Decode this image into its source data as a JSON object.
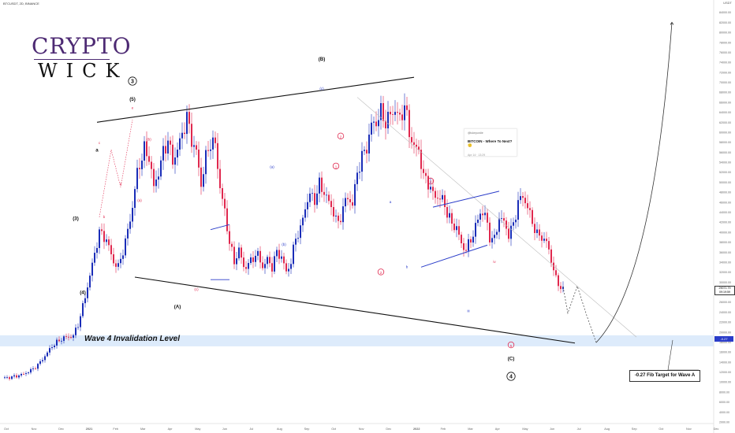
{
  "header": {
    "symbol": "BTCUSDT, 2D, BINANCE",
    "currency": "USDT"
  },
  "logo": {
    "line1": "CRYPTO",
    "line2": "WICK"
  },
  "tweet": {
    "handle": "@lukepurdie",
    "title": "BITCOIN - Where To Next? 🙂",
    "date": "Apr 14 · 13:29"
  },
  "callout_text": "-0.27 Fib Target for Wave A",
  "zone_label": "Wave 4 Invalidation Level",
  "price_tags": {
    "current": "29071.79",
    "countdown": "09:19:59",
    "zone": "-0.27"
  },
  "colors": {
    "up": "#1a2db8",
    "down": "#e0284e",
    "zone": "#cfe3fa",
    "waveRed": "#e0284e",
    "waveBlue": "#2a3cc9",
    "logoPurple": "#4d2a73"
  },
  "chart_data": {
    "type": "candlestick",
    "price_axis": [
      "84000.00",
      "82000.00",
      "80000.00",
      "78000.00",
      "76000.00",
      "74000.00",
      "72000.00",
      "70000.00",
      "68000.00",
      "66000.00",
      "64000.00",
      "62000.00",
      "60000.00",
      "58000.00",
      "56000.00",
      "54000.00",
      "52000.00",
      "50000.00",
      "48000.00",
      "46000.00",
      "44000.00",
      "42000.00",
      "40000.00",
      "38000.00",
      "36000.00",
      "34000.00",
      "32000.00",
      "30000.00",
      "28000.00",
      "26000.00",
      "24000.00",
      "22000.00",
      "20000.00",
      "18000.00",
      "16000.00",
      "14000.00",
      "12000.00",
      "10000.00",
      "8000.00",
      "6000.00",
      "4000.00",
      "2000.00"
    ],
    "x_ticks": [
      "Oct",
      "Nov",
      "Dec",
      "2021",
      "Feb",
      "Mar",
      "Apr",
      "May",
      "Jun",
      "Jul",
      "Aug",
      "Sep",
      "Oct",
      "Nov",
      "Dec",
      "2022",
      "Feb",
      "Mar",
      "Apr",
      "May",
      "Jun",
      "Jul",
      "Aug",
      "Sep",
      "Oct",
      "Nov",
      "Dec"
    ],
    "trend_points": [
      [
        0,
        10800
      ],
      [
        3,
        10900
      ],
      [
        6,
        11200
      ],
      [
        9,
        11600
      ],
      [
        12,
        12300
      ],
      [
        15,
        13400
      ],
      [
        18,
        15200
      ],
      [
        21,
        17200
      ],
      [
        24,
        18300
      ],
      [
        26,
        18900
      ],
      [
        28,
        19000
      ],
      [
        30,
        19300
      ],
      [
        32,
        21500
      ],
      [
        35,
        27000
      ],
      [
        38,
        33500
      ],
      [
        41,
        40000
      ],
      [
        44,
        38500
      ],
      [
        47,
        34000
      ],
      [
        49,
        33000
      ],
      [
        52,
        38000
      ],
      [
        55,
        45000
      ],
      [
        57,
        52000
      ],
      [
        60,
        56500
      ],
      [
        62,
        55000
      ],
      [
        64,
        49000
      ],
      [
        66,
        52000
      ],
      [
        68,
        56000
      ],
      [
        70,
        58500
      ],
      [
        72,
        54000
      ],
      [
        75,
        58000
      ],
      [
        78,
        63000
      ],
      [
        80,
        58500
      ],
      [
        82,
        56000
      ],
      [
        84,
        49500
      ],
      [
        86,
        55000
      ],
      [
        88,
        58000
      ],
      [
        90,
        57500
      ],
      [
        92,
        49000
      ],
      [
        94,
        44000
      ],
      [
        96,
        38000
      ],
      [
        98,
        34000
      ],
      [
        100,
        36500
      ],
      [
        102,
        33000
      ],
      [
        104,
        33500
      ],
      [
        106,
        35000
      ],
      [
        108,
        35500
      ],
      [
        110,
        33000
      ],
      [
        112,
        34500
      ],
      [
        114,
        33000
      ],
      [
        116,
        36000
      ],
      [
        118,
        35000
      ],
      [
        120,
        32000
      ],
      [
        122,
        34000
      ],
      [
        124,
        39000
      ],
      [
        126,
        40500
      ],
      [
        128,
        45000
      ],
      [
        130,
        47500
      ],
      [
        132,
        46500
      ],
      [
        134,
        49500
      ],
      [
        136,
        48000
      ],
      [
        138,
        46000
      ],
      [
        140,
        44000
      ],
      [
        142,
        41500
      ],
      [
        144,
        45000
      ],
      [
        146,
        47000
      ],
      [
        148,
        45500
      ],
      [
        150,
        52000
      ],
      [
        152,
        55000
      ],
      [
        154,
        57000
      ],
      [
        156,
        61500
      ],
      [
        158,
        62000
      ],
      [
        160,
        64000
      ],
      [
        162,
        62000
      ],
      [
        164,
        63500
      ],
      [
        166,
        64500
      ],
      [
        168,
        62500
      ],
      [
        170,
        65500
      ],
      [
        172,
        60000
      ],
      [
        174,
        57000
      ],
      [
        176,
        56500
      ],
      [
        178,
        51000
      ],
      [
        180,
        50000
      ],
      [
        182,
        47500
      ],
      [
        184,
        47000
      ],
      [
        186,
        46500
      ],
      [
        188,
        44000
      ],
      [
        190,
        41500
      ],
      [
        192,
        41000
      ],
      [
        194,
        37500
      ],
      [
        196,
        36500
      ],
      [
        198,
        38500
      ],
      [
        200,
        41000
      ],
      [
        202,
        44000
      ],
      [
        204,
        43500
      ],
      [
        206,
        39000
      ],
      [
        208,
        38500
      ],
      [
        210,
        43000
      ],
      [
        212,
        42000
      ],
      [
        214,
        39500
      ],
      [
        216,
        41500
      ],
      [
        218,
        46000
      ],
      [
        220,
        47200
      ],
      [
        222,
        45000
      ],
      [
        224,
        42000
      ],
      [
        226,
        39500
      ],
      [
        228,
        39000
      ],
      [
        230,
        38000
      ],
      [
        232,
        34500
      ],
      [
        234,
        30500
      ],
      [
        236,
        29000
      ],
      [
        237,
        29072
      ]
    ],
    "y_range": [
      2000,
      86000
    ],
    "zone_level": 18400,
    "projection": [
      [
        237,
        29072
      ],
      [
        239,
        23800
      ],
      [
        243,
        29200
      ],
      [
        247,
        23300
      ],
      [
        251,
        17900
      ]
    ],
    "big_arc": [
      [
        251,
        17900
      ],
      [
        262,
        27000
      ],
      [
        270,
        40000
      ],
      [
        278,
        60000
      ],
      [
        283,
        82000
      ]
    ],
    "upper_line": [
      [
        40,
        62000
      ],
      [
        174,
        71000
      ]
    ],
    "lower_line": [
      [
        56,
        31000
      ],
      [
        242,
        17800
      ]
    ],
    "waves": [
      {
        "label": "3",
        "circle": true,
        "i": 55,
        "p": 70000,
        "color": "#111"
      },
      {
        "label": "(5)",
        "i": 55,
        "p": 66500,
        "color": "#111"
      },
      {
        "label": "(B)",
        "i": 135,
        "p": 74500,
        "color": "#111"
      },
      {
        "label": "(3)",
        "i": 31,
        "p": 42600,
        "color": "#111"
      },
      {
        "label": "(4)",
        "i": 34,
        "p": 27800,
        "color": "#111"
      },
      {
        "label": "(A)",
        "i": 74,
        "p": 25000,
        "color": "#111"
      },
      {
        "label": "(C)",
        "i": 215,
        "p": 14600,
        "color": "#111"
      },
      {
        "label": "4",
        "circle": true,
        "i": 215,
        "p": 10900,
        "color": "#111"
      },
      {
        "label": "e",
        "i": 55,
        "p": 64800,
        "color": "#e0284e"
      },
      {
        "label": "(b)",
        "i": 62,
        "p": 58500,
        "color": "#e0284e"
      },
      {
        "label": "(a)",
        "i": 58,
        "p": 46300,
        "color": "#e0284e"
      },
      {
        "label": "(c)",
        "i": 82,
        "p": 28500,
        "color": "#e0284e"
      },
      {
        "label": "c",
        "i": 41,
        "p": 57800,
        "color": "#e0284e"
      },
      {
        "label": "d",
        "i": 50,
        "p": 49600,
        "color": "#e0284e"
      },
      {
        "label": "b",
        "i": 43,
        "p": 43000,
        "color": "#e0284e"
      },
      {
        "label": "a",
        "i": 40,
        "p": 56300,
        "color": "#111"
      },
      {
        "label": "2",
        "circle": true,
        "i": 143,
        "p": 59000,
        "color": "#e0284e"
      },
      {
        "label": "1",
        "circle": true,
        "i": 141,
        "p": 53000,
        "color": "#e0284e"
      },
      {
        "label": "4",
        "circle": true,
        "i": 181,
        "p": 50000,
        "color": "#e0284e"
      },
      {
        "label": "2",
        "circle": true,
        "i": 160,
        "p": 31800,
        "color": "#e0284e"
      },
      {
        "label": "5",
        "circle": true,
        "i": 215,
        "p": 17200,
        "color": "#e0284e"
      },
      {
        "label": "(a)",
        "i": 114,
        "p": 53000,
        "color": "#2a3cc9"
      },
      {
        "label": "(b)",
        "i": 119,
        "p": 37500,
        "color": "#2a3cc9"
      },
      {
        "label": "(c)",
        "i": 135,
        "p": 68700,
        "color": "#2a3cc9"
      },
      {
        "label": "a",
        "i": 164,
        "p": 46000,
        "color": "#2a3cc9"
      },
      {
        "label": "b",
        "i": 171,
        "p": 33000,
        "color": "#2a3cc9"
      },
      {
        "label": "iv",
        "i": 208,
        "p": 34000,
        "color": "#e0284e"
      },
      {
        "label": "iii",
        "i": 197,
        "p": 24200,
        "color": "#2a3cc9"
      }
    ]
  }
}
